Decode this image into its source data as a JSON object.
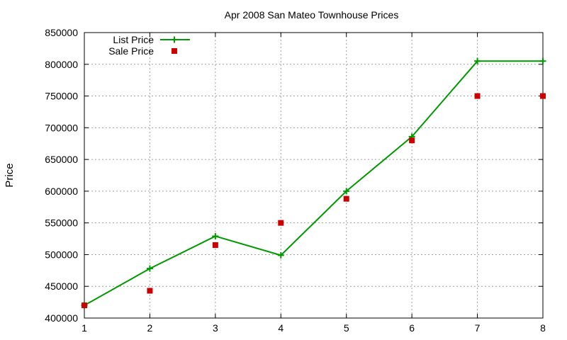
{
  "chart_data": {
    "type": "line",
    "title": "Apr 2008 San Mateo Townhouse Prices",
    "xlabel": "",
    "ylabel": "Price",
    "x": [
      1,
      2,
      3,
      4,
      5,
      6,
      7,
      8
    ],
    "xlim": [
      1,
      8
    ],
    "ylim": [
      400000,
      850000
    ],
    "xticks": [
      1,
      2,
      3,
      4,
      5,
      6,
      7,
      8
    ],
    "yticks": [
      400000,
      450000,
      500000,
      550000,
      600000,
      650000,
      700000,
      750000,
      800000,
      850000
    ],
    "grid": true,
    "legend_position": "top-left",
    "series": [
      {
        "name": "List Price",
        "style": "lines+points",
        "marker": "plus",
        "color": "#009900",
        "values": [
          420000,
          478000,
          529000,
          499000,
          600000,
          686000,
          805000,
          805000
        ]
      },
      {
        "name": "Sale Price",
        "style": "points",
        "marker": "square",
        "color": "#cc0000",
        "values": [
          420000,
          443000,
          515000,
          550000,
          588000,
          680000,
          750000,
          750000
        ]
      }
    ]
  }
}
